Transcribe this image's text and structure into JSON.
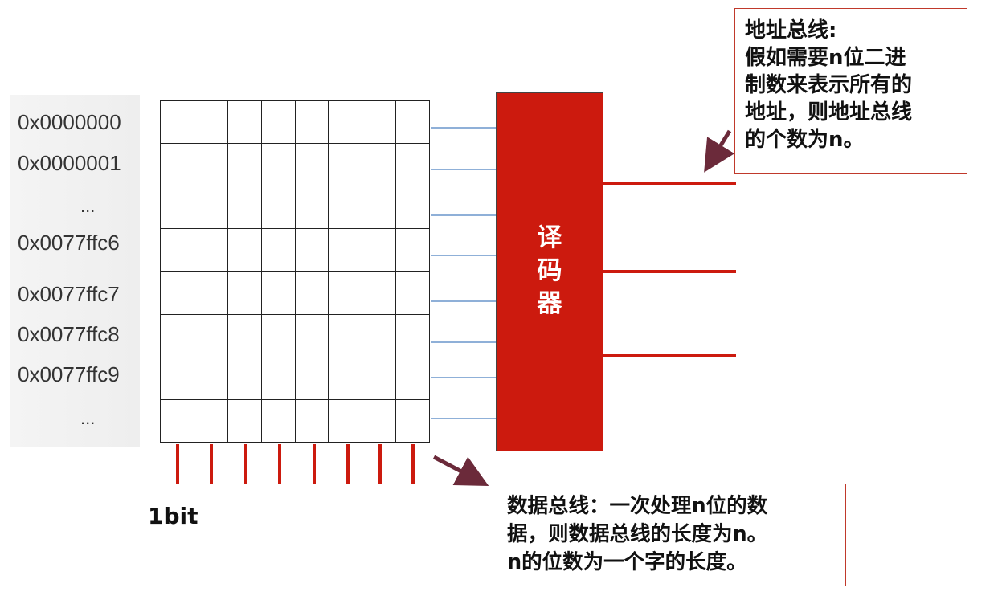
{
  "addresses": [
    "0x0000000",
    "0x0000001",
    "...",
    "0x0077ffc6",
    "0x0077ffc7",
    "0x0077ffc8",
    "0x0077ffc9",
    "..."
  ],
  "decoder": {
    "line1": "译",
    "line2": "码",
    "line3": "器"
  },
  "bit_label": "1bit",
  "address_bus_note": {
    "lines": [
      "地址总线:",
      "假如需要n位二进",
      "制数来表示所有的",
      "地址，则地址总线",
      "的个数为n。"
    ]
  },
  "data_bus_note": {
    "lines": [
      "数据总线：一次处理n位的数",
      "据，则数据总线的长度为n。",
      "n的位数为一个字的长度。"
    ]
  },
  "colors": {
    "decoder": "#cc1a0e",
    "bus_lines": "#cc1a0e",
    "word_lines": "#8fb0d8",
    "callout_border": "#c0392b",
    "arrow": "#6b2a3a"
  }
}
